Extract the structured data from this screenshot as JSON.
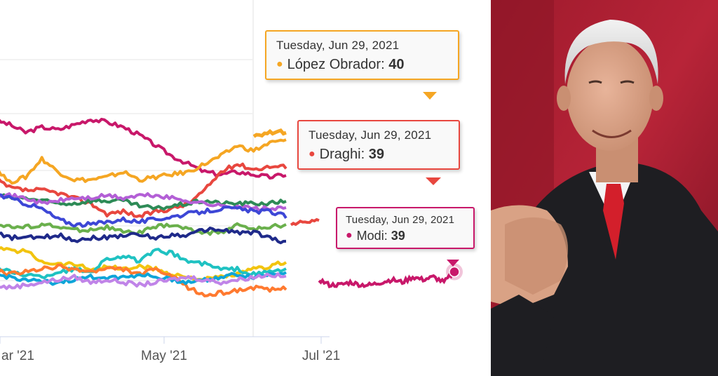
{
  "chart_data": {
    "type": "line",
    "x_ticks": [
      "ar '21",
      "May '21",
      "Jul '21"
    ],
    "series": [
      {
        "color": "#c8186a",
        "values": [
          72,
          70,
          67,
          69,
          68,
          70,
          72,
          71,
          69,
          66,
          62,
          58,
          55,
          52,
          51,
          52,
          51,
          50,
          51
        ]
      },
      {
        "color": "#f5a623",
        "values": [
          55,
          48,
          50,
          57,
          52,
          49,
          49,
          50,
          52,
          49,
          50,
          51,
          52,
          55,
          58,
          62,
          60,
          63,
          64
        ]
      },
      {
        "color": "#e8473f",
        "values": [
          50,
          46,
          45,
          45,
          44,
          42,
          40,
          36,
          37,
          35,
          37,
          38,
          40,
          45,
          52,
          55,
          53,
          54,
          54
        ]
      },
      {
        "color": "#2e8b57",
        "values": [
          44,
          42,
          42,
          41,
          40,
          40,
          41,
          41,
          41,
          39,
          38,
          39,
          40,
          41,
          40,
          40,
          40,
          40,
          41
        ]
      },
      {
        "color": "#b35fd6",
        "values": [
          44,
          43,
          42,
          40,
          41,
          42,
          42,
          43,
          42,
          43,
          43,
          42,
          41,
          40,
          39,
          39,
          38,
          38,
          38
        ]
      },
      {
        "color": "#3d47d6",
        "values": [
          44,
          42,
          40,
          38,
          34,
          32,
          32,
          33,
          34,
          33,
          34,
          35,
          36,
          37,
          38,
          38,
          37,
          37,
          35
        ]
      },
      {
        "color": "#6ab04c",
        "values": [
          33,
          31,
          31,
          32,
          31,
          30,
          30,
          31,
          29,
          29,
          31,
          32,
          30,
          29,
          29,
          32,
          30,
          31,
          32
        ]
      },
      {
        "color": "#1f2a8a",
        "values": [
          29,
          27,
          27,
          27,
          28,
          26,
          27,
          27,
          28,
          28,
          27,
          28,
          28,
          30,
          30,
          29,
          29,
          27,
          25
        ]
      },
      {
        "color": "#f2c40f",
        "values": [
          24,
          22,
          22,
          18,
          17,
          17,
          15,
          16,
          15,
          16,
          15,
          13,
          12,
          11,
          12,
          13,
          15,
          16,
          18
        ]
      },
      {
        "color": "#1fc2c2",
        "values": [
          16,
          14,
          13,
          12,
          14,
          15,
          14,
          19,
          20,
          18,
          22,
          21,
          18,
          17,
          15,
          15,
          13,
          14,
          15
        ]
      },
      {
        "color": "#ff7a30",
        "values": [
          15,
          13,
          14,
          15,
          16,
          15,
          14,
          15,
          15,
          13,
          15,
          12,
          8,
          5,
          6,
          7,
          8,
          7,
          8
        ]
      },
      {
        "color": "#0ea5d8",
        "values": [
          13,
          12,
          11,
          10,
          10,
          11,
          12,
          12,
          12,
          13,
          12,
          11,
          10,
          11,
          12,
          13,
          12,
          13,
          14
        ]
      },
      {
        "color": "#c084e8",
        "values": [
          9,
          8,
          9,
          10,
          11,
          12,
          10,
          11,
          10,
          9,
          10,
          11,
          12,
          11,
          10,
          11,
          12,
          13,
          12
        ]
      }
    ],
    "highlight_series": [
      {
        "name": "López Obrador",
        "color": "#f5a623",
        "values": [
          66,
          67,
          67
        ]
      },
      {
        "name": "Draghi",
        "color": "#e8473f",
        "values": [
          32,
          33,
          34
        ]
      },
      {
        "name": "Modi",
        "color": "#c8186a",
        "values": [
          11,
          9,
          9,
          10,
          9,
          9,
          10,
          11,
          10,
          12,
          11,
          12,
          10,
          14
        ]
      }
    ],
    "tooltips": [
      {
        "date": "Tuesday, Jun 29, 2021",
        "name": "López Obrador",
        "value": "40",
        "color": "#f5a623"
      },
      {
        "date": "Tuesday, Jun 29, 2021",
        "name": "Draghi",
        "value": "39",
        "color": "#e8473f"
      },
      {
        "date": "Tuesday, Jun 29, 2021",
        "name": "Modi",
        "value": "39",
        "color": "#c8186a"
      }
    ]
  }
}
